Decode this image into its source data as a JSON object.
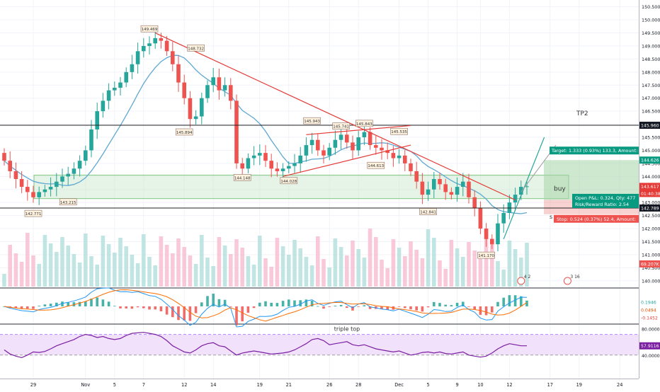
{
  "chart_data": {
    "type": "candlestick",
    "price_axis": {
      "min": 139.75,
      "max": 150.6,
      "ticks": [
        150.5,
        150.0,
        149.5,
        149.0,
        148.5,
        148.0,
        147.5,
        147.0,
        146.5,
        146.0,
        145.5,
        145.0,
        144.5,
        144.0,
        143.5,
        143.0,
        142.5,
        142.0,
        141.5,
        141.0,
        140.5,
        140.0
      ],
      "tick_labels": [
        "150.500",
        "150.000",
        "149.500",
        "149.000",
        "148.500",
        "148.000",
        "147.500",
        "147.000",
        "146.500",
        "146.000",
        "145.500",
        "145.000",
        "144.500",
        "144.000",
        "143.500",
        "143.000",
        "142.500",
        "142.000",
        "141.500",
        "141.000",
        "140.500",
        "140.000"
      ]
    },
    "time_axis": {
      "labels": [
        {
          "text": "29",
          "i": 5
        },
        {
          "text": "Nov",
          "i": 14
        },
        {
          "text": "5",
          "i": 19
        },
        {
          "text": "7",
          "i": 24
        },
        {
          "text": "12",
          "i": 31
        },
        {
          "text": "14",
          "i": 36
        },
        {
          "text": "19",
          "i": 44
        },
        {
          "text": "21",
          "i": 49
        },
        {
          "text": "26",
          "i": 56
        },
        {
          "text": "28",
          "i": 61
        },
        {
          "text": "Dec",
          "i": 68
        },
        {
          "text": "5",
          "i": 73
        },
        {
          "text": "9",
          "i": 78
        },
        {
          "text": "10",
          "i": 82
        },
        {
          "text": "12",
          "i": 87
        },
        {
          "text": "17",
          "i": 94
        },
        {
          "text": "19",
          "i": 99
        },
        {
          "text": "24",
          "i": 106
        }
      ]
    },
    "candles_close": [
      144.6,
      144.2,
      143.9,
      143.6,
      143.4,
      143.2,
      143.4,
      143.5,
      143.6,
      143.8,
      144.0,
      144.1,
      144.3,
      144.6,
      145.0,
      145.8,
      146.5,
      146.9,
      147.3,
      147.4,
      147.6,
      148.0,
      148.3,
      148.8,
      149.0,
      149.1,
      149.3,
      149.2,
      148.8,
      148.3,
      147.6,
      147.0,
      146.2,
      146.3,
      147.0,
      147.5,
      147.8,
      147.3,
      147.5,
      146.9,
      144.5,
      144.3,
      144.7,
      144.8,
      144.9,
      144.6,
      144.3,
      144.2,
      144.3,
      144.4,
      144.5,
      144.8,
      145.2,
      145.4,
      145.0,
      144.8,
      145.1,
      145.4,
      145.6,
      145.3,
      145.0,
      145.5,
      145.7,
      145.2,
      145.1,
      145.0,
      144.9,
      144.7,
      144.8,
      144.5,
      144.2,
      143.8,
      143.3,
      143.5,
      143.9,
      143.7,
      143.4,
      143.3,
      143.6,
      143.8,
      143.2,
      142.8,
      142.0,
      141.6,
      141.4,
      142.2,
      142.6,
      143.0,
      143.3,
      143.6,
      143.62
    ],
    "annotations": [
      {
        "text": "149.469",
        "i": 25,
        "price": 149.469,
        "pos": "above"
      },
      {
        "text": "148.732",
        "i": 33,
        "price": 148.732,
        "pos": "above"
      },
      {
        "text": "145.894",
        "i": 31,
        "price": 145.894,
        "pos": "below"
      },
      {
        "text": "145.943",
        "i": 53,
        "price": 145.943,
        "pos": "above"
      },
      {
        "text": "145.741",
        "i": 58,
        "price": 145.741,
        "pos": "above"
      },
      {
        "text": "145.843",
        "i": 62,
        "price": 145.843,
        "pos": "above"
      },
      {
        "text": "145.535",
        "i": 68,
        "price": 145.535,
        "pos": "above"
      },
      {
        "text": "144.613",
        "i": 64,
        "price": 144.613,
        "pos": "below"
      },
      {
        "text": "144.148",
        "i": 41,
        "price": 144.148,
        "pos": "below"
      },
      {
        "text": "144.028",
        "i": 49,
        "price": 144.028,
        "pos": "below"
      },
      {
        "text": "143.215",
        "i": 11,
        "price": 143.215,
        "pos": "below"
      },
      {
        "text": "142.771",
        "i": 5,
        "price": 142.771,
        "pos": "below"
      },
      {
        "text": "142.841",
        "i": 73,
        "price": 142.841,
        "pos": "below"
      },
      {
        "text": "141.170",
        "i": 83,
        "price": 141.17,
        "pos": "below"
      }
    ],
    "horizontal_levels": [
      {
        "name": "TP2",
        "price": 145.96,
        "label": "145.960",
        "color": "#222222"
      },
      {
        "name": "S",
        "price": 142.789,
        "label": "142.789",
        "color": "#222222"
      }
    ],
    "last_price": {
      "label": "143.617",
      "countdown": "01:40:38",
      "color": "#e53935"
    },
    "target_price": {
      "label": "144.626",
      "color": "#089981"
    },
    "zones_text": {
      "tp2": "TP2",
      "buy": "buy",
      "s": "s"
    },
    "position": {
      "target_label": "Target: 1.333 (0.93%) 133.3, Amount:",
      "open_pnl": "Open P&L: 0.324, Qty: 477",
      "rr": "Risk/Reward Ratio: 2.54",
      "stop_label": "Stop: 0.524 (0.37%) 52.4, Amount:"
    },
    "volume_label": "69.207K",
    "events": [
      {
        "text": "4 2",
        "i": 89
      },
      {
        "text": "3 16",
        "i": 97
      }
    ],
    "macd": {
      "labels": [
        {
          "text": "0.1946",
          "color": "#26a69a"
        },
        {
          "text": "0.0494",
          "color": "#e65100"
        },
        {
          "text": "-0.1452",
          "color": "#e53935"
        }
      ]
    },
    "rsi": {
      "ticks": [
        "80.0000",
        "40.0000"
      ],
      "value_label": "57.9116",
      "annotation": "triple top",
      "values": [
        50,
        42,
        38,
        35,
        40,
        46,
        45,
        47,
        52,
        58,
        62,
        66,
        70,
        76,
        80,
        78,
        74,
        76,
        72,
        70,
        72,
        78,
        82,
        83,
        84,
        82,
        80,
        76,
        68,
        58,
        52,
        46,
        44,
        50,
        58,
        62,
        64,
        58,
        56,
        48,
        40,
        44,
        46,
        48,
        46,
        44,
        42,
        43,
        44,
        46,
        50,
        56,
        62,
        70,
        72,
        68,
        60,
        62,
        64,
        66,
        60,
        58,
        60,
        56,
        52,
        50,
        48,
        46,
        48,
        44,
        40,
        42,
        45,
        46,
        44,
        46,
        43,
        42,
        44,
        46,
        40,
        38,
        36,
        38,
        44,
        52,
        58,
        62,
        60,
        58,
        57.9
      ]
    },
    "colors": {
      "up": "#26a69a",
      "down": "#ef5350",
      "ma": "#5fa8d3",
      "trend": "#e53935",
      "zone": "#c8e6c9",
      "rsi_band": "#f1e1fb",
      "rsi_line": "#7b1fa2"
    }
  }
}
